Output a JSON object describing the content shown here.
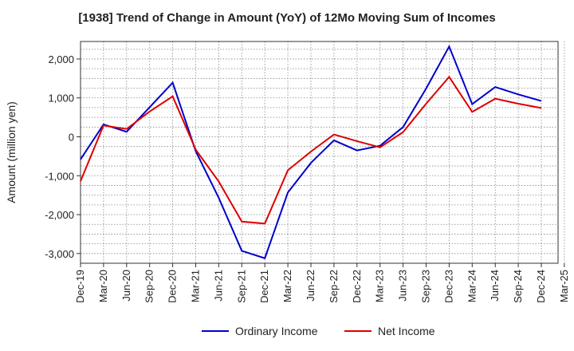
{
  "chart_data": {
    "type": "line",
    "title": "[1938]  Trend of Change in Amount (YoY) of 12Mo Moving Sum of Incomes",
    "ylabel": "Amount (million yen)",
    "xlabel": "",
    "ylim": [
      -3250,
      2450
    ],
    "yticks": [
      2000,
      1000,
      0,
      -1000,
      -2000,
      -3000
    ],
    "ytick_labels": [
      "2,000",
      "1,000",
      "0",
      "-1,000",
      "-2,000",
      "-3,000"
    ],
    "categories": [
      "Dec-19",
      "Mar-20",
      "Jun-20",
      "Sep-20",
      "Dec-20",
      "Mar-21",
      "Jun-21",
      "Sep-21",
      "Dec-21",
      "Mar-22",
      "Jun-22",
      "Sep-22",
      "Dec-22",
      "Mar-23",
      "Jun-23",
      "Sep-23",
      "Dec-23",
      "Mar-24",
      "Jun-24",
      "Sep-24",
      "Dec-24",
      "Mar-25"
    ],
    "grid": true,
    "legend_position": "bottom",
    "series": [
      {
        "name": "Ordinary Income",
        "color": "#0000cc",
        "values": [
          -580,
          320,
          130,
          760,
          1390,
          -370,
          -1570,
          -2930,
          -3120,
          -1430,
          -670,
          -90,
          -350,
          -230,
          250,
          1240,
          2320,
          840,
          1280,
          1090,
          920,
          null
        ]
      },
      {
        "name": "Net Income",
        "color": "#dd0000",
        "values": [
          -1140,
          290,
          200,
          650,
          1040,
          -330,
          -1150,
          -2180,
          -2230,
          -860,
          -380,
          60,
          -110,
          -270,
          120,
          850,
          1540,
          640,
          980,
          850,
          740,
          null
        ]
      }
    ]
  }
}
